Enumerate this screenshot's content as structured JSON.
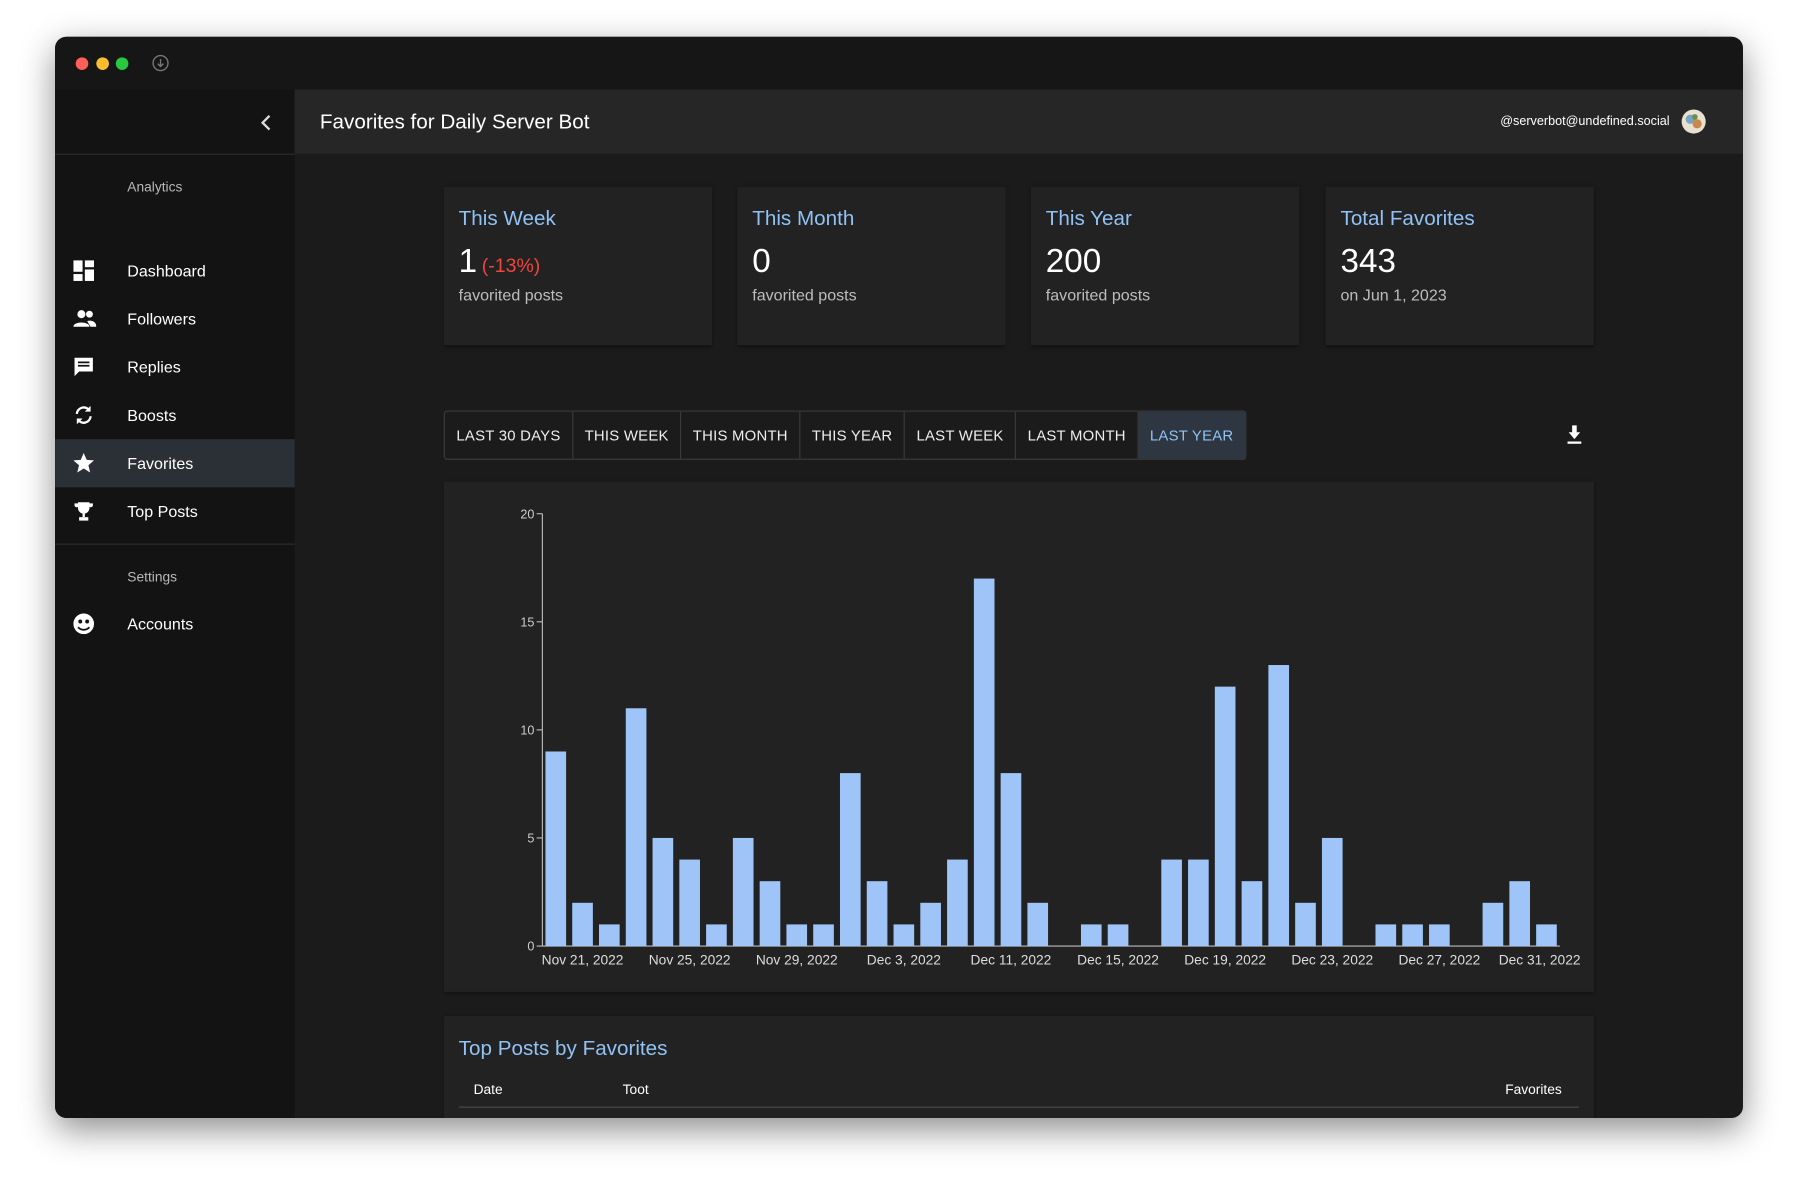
{
  "header": {
    "title": "Favorites for Daily Server Bot",
    "user": "@serverbot@undefined.social"
  },
  "sidebar": {
    "sections": [
      {
        "title": "Analytics",
        "items": [
          "Dashboard",
          "Followers",
          "Replies",
          "Boosts",
          "Favorites",
          "Top Posts"
        ]
      },
      {
        "title": "Settings",
        "items": [
          "Accounts"
        ]
      }
    ]
  },
  "cards": [
    {
      "title": "This Week",
      "value": 1,
      "change": "(-13%)",
      "caption": "favorited posts"
    },
    {
      "title": "This Month",
      "value": 0,
      "caption": "favorited posts"
    },
    {
      "title": "This Year",
      "value": 200,
      "caption": "favorited posts"
    },
    {
      "title": "Total Favorites",
      "value": 343,
      "caption": "on Jun 1, 2023"
    }
  ],
  "tabs": [
    "LAST 30 DAYS",
    "THIS WEEK",
    "THIS MONTH",
    "THIS YEAR",
    "LAST WEEK",
    "LAST MONTH",
    "LAST YEAR"
  ],
  "chart_data": {
    "type": "bar",
    "categories": [
      null,
      "Nov 21, 2022",
      null,
      null,
      null,
      "Nov 25, 2022",
      null,
      null,
      null,
      "Nov 29, 2022",
      null,
      null,
      null,
      "Dec 3, 2022",
      null,
      null,
      null,
      "Dec 11, 2022",
      null,
      null,
      null,
      "Dec 15, 2022",
      null,
      null,
      null,
      "Dec 19, 2022",
      null,
      null,
      null,
      "Dec 23, 2022",
      null,
      null,
      null,
      "Dec 27, 2022",
      null,
      null,
      null,
      "Dec 31, 2022"
    ],
    "values": [
      9,
      2,
      1,
      11,
      5,
      4,
      1,
      5,
      3,
      1,
      1,
      8,
      3,
      1,
      2,
      4,
      17,
      8,
      2,
      0,
      1,
      1,
      0,
      4,
      4,
      12,
      3,
      13,
      2,
      5,
      0,
      1,
      1,
      1,
      0,
      2,
      3,
      1
    ],
    "color": "#9fc5f8",
    "ylim": [
      0,
      20
    ],
    "yticks": [
      0,
      5,
      10,
      15,
      20
    ]
  },
  "table": {
    "title": "Top Posts by Favorites",
    "columns": [
      "Date",
      "Toot",
      "Favorites"
    ]
  }
}
